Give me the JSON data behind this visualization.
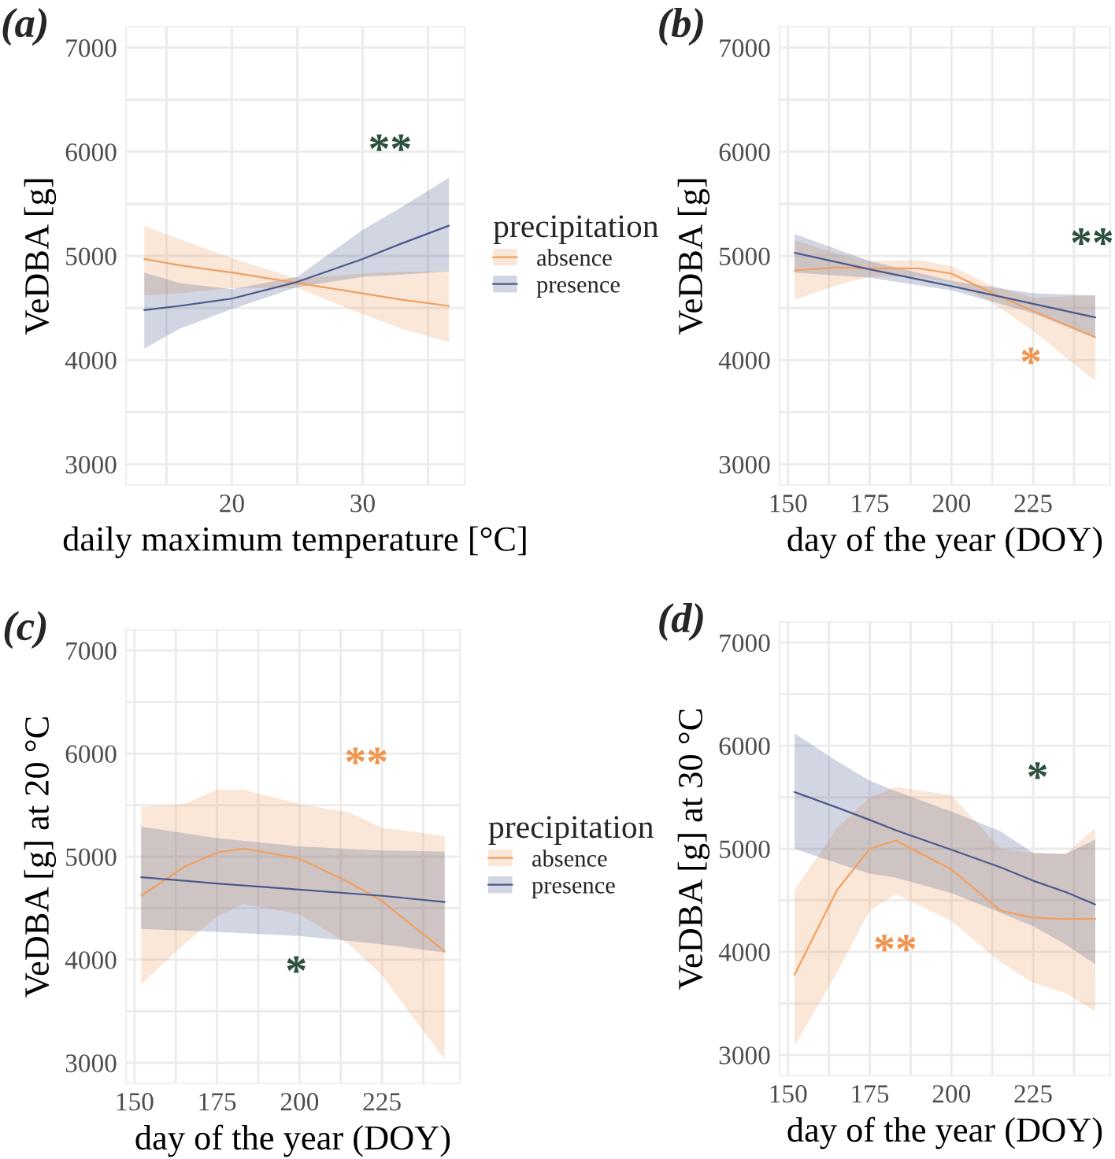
{
  "chart_data": [
    {
      "type": "line",
      "title": "(a)",
      "xlabel": "daily maximum temperature [°C]",
      "ylabel": "VeDBA [g]",
      "legend_title": "precipitation",
      "legend": "right",
      "grid": true,
      "xlim": [
        11.9,
        37.8
      ],
      "xticks": [
        {
          "value": 15,
          "label": null
        },
        20,
        {
          "value": 25,
          "label": null
        },
        30,
        {
          "value": 35,
          "label": null
        }
      ],
      "ylim": [
        2800,
        7200
      ],
      "yticks": [
        3000,
        {
          "value": 3500,
          "label": null
        },
        4000,
        {
          "value": 4500,
          "label": null
        },
        5000,
        {
          "value": 5500,
          "label": null
        },
        6000,
        {
          "value": 6500,
          "label": null
        },
        7000
      ],
      "series": [
        {
          "name": "absence",
          "color": "#f0a060",
          "x": [
            13.3,
            16,
            20,
            25,
            30,
            33,
            36.6
          ],
          "values": [
            4970,
            4910,
            4840,
            4740,
            4640,
            4580,
            4520
          ],
          "upper": [
            5290,
            5160,
            4980,
            4780,
            4830,
            4850,
            4850
          ],
          "lower": [
            4620,
            4640,
            4690,
            4690,
            4440,
            4300,
            4170
          ]
        },
        {
          "name": "presence",
          "color": "#4a5a8c",
          "x": [
            13.3,
            16,
            20,
            25,
            30,
            33,
            36.6
          ],
          "values": [
            4480,
            4520,
            4590,
            4750,
            4970,
            5120,
            5290
          ],
          "upper": [
            4840,
            4740,
            4680,
            4800,
            5250,
            5470,
            5750
          ],
          "lower": [
            4110,
            4300,
            4490,
            4700,
            4800,
            4820,
            4850
          ]
        }
      ],
      "annotations": [
        "**"
      ]
    },
    {
      "type": "line",
      "title": "(b)",
      "xlabel": "day of the year (DOY)",
      "ylabel": "VeDBA [g]",
      "grid": true,
      "xlim": [
        147.4,
        248.6
      ],
      "xticks": [
        150,
        {
          "value": 162.5,
          "label": null
        },
        175,
        {
          "value": 187.5,
          "label": null
        },
        200,
        {
          "value": 212.5,
          "label": null
        },
        225,
        {
          "value": 237.5,
          "label": null
        }
      ],
      "ylim": [
        2800,
        7200
      ],
      "yticks": [
        3000,
        {
          "value": 3500,
          "label": null
        },
        4000,
        {
          "value": 4500,
          "label": null
        },
        5000,
        {
          "value": 5500,
          "label": null
        },
        6000,
        {
          "value": 6500,
          "label": null
        },
        7000
      ],
      "series": [
        {
          "color": "#f0a060",
          "x": [
            152,
            165,
            175,
            190,
            200,
            212,
            225,
            244
          ],
          "values": [
            4860,
            4890,
            4880,
            4880,
            4830,
            4650,
            4470,
            4220
          ],
          "upper": [
            5150,
            5020,
            4950,
            4960,
            4900,
            4720,
            4600,
            4620
          ],
          "lower": [
            4580,
            4720,
            4800,
            4800,
            4740,
            4560,
            4280,
            3800
          ]
        },
        {
          "color": "#4a5a8c",
          "x": [
            152,
            175,
            200,
            225,
            244
          ],
          "values": [
            5030,
            4870,
            4710,
            4540,
            4410
          ],
          "upper": [
            5210,
            4950,
            4760,
            4640,
            4620
          ],
          "lower": [
            4840,
            4790,
            4670,
            4450,
            4210
          ]
        }
      ],
      "annotations": [
        "**",
        "*"
      ]
    },
    {
      "type": "line",
      "title": "(c)",
      "xlabel": "day of the year (DOY)",
      "ylabel": "VeDBA [g] at 20 °C",
      "legend_title": "precipitation",
      "legend": "right",
      "grid": true,
      "xlim": [
        147.4,
        248.6
      ],
      "xticks": [
        150,
        {
          "value": 162.5,
          "label": null
        },
        175,
        {
          "value": 187.5,
          "label": null
        },
        200,
        {
          "value": 212.5,
          "label": null
        },
        225,
        {
          "value": 237.5,
          "label": null
        }
      ],
      "ylim": [
        2800,
        7200
      ],
      "yticks": [
        3000,
        {
          "value": 3500,
          "label": null
        },
        4000,
        {
          "value": 4500,
          "label": null
        },
        5000,
        {
          "value": 5500,
          "label": null
        },
        6000,
        {
          "value": 6500,
          "label": null
        },
        7000
      ],
      "series": [
        {
          "name": "absence",
          "color": "#f0a060",
          "x": [
            152,
            165,
            175,
            183,
            200,
            215,
            225,
            244
          ],
          "values": [
            4620,
            4900,
            5040,
            5080,
            4980,
            4750,
            4570,
            4080
          ],
          "upper": [
            5480,
            5510,
            5650,
            5650,
            5510,
            5430,
            5280,
            5200
          ],
          "lower": [
            3760,
            4150,
            4420,
            4540,
            4440,
            4150,
            3850,
            3030
          ]
        },
        {
          "name": "presence",
          "color": "#4a5a8c",
          "x": [
            152,
            175,
            200,
            225,
            244
          ],
          "values": [
            4800,
            4740,
            4680,
            4620,
            4560
          ],
          "upper": [
            5290,
            5180,
            5100,
            5060,
            5050
          ],
          "lower": [
            4300,
            4270,
            4230,
            4150,
            4070
          ]
        }
      ],
      "annotations": [
        "**",
        "*"
      ]
    },
    {
      "type": "line",
      "title": "(d)",
      "xlabel": "day of the year (DOY)",
      "ylabel": "VeDBA [g] at 30 °C",
      "grid": true,
      "xlim": [
        147.4,
        248.6
      ],
      "xticks": [
        150,
        {
          "value": 162.5,
          "label": null
        },
        175,
        {
          "value": 187.5,
          "label": null
        },
        200,
        {
          "value": 212.5,
          "label": null
        },
        225,
        {
          "value": 237.5,
          "label": null
        }
      ],
      "ylim": [
        2800,
        7200
      ],
      "yticks": [
        3000,
        {
          "value": 3500,
          "label": null
        },
        4000,
        {
          "value": 4500,
          "label": null
        },
        5000,
        {
          "value": 5500,
          "label": null
        },
        6000,
        {
          "value": 6500,
          "label": null
        },
        7000
      ],
      "series": [
        {
          "color": "#f0a060",
          "x": [
            152,
            165,
            175,
            183,
            200,
            215,
            225,
            235,
            244
          ],
          "values": [
            3780,
            4600,
            5000,
            5080,
            4800,
            4400,
            4330,
            4320,
            4320
          ],
          "upper": [
            4600,
            5200,
            5500,
            5600,
            5520,
            5000,
            4960,
            4950,
            5200
          ],
          "lower": [
            3090,
            3800,
            4400,
            4560,
            4300,
            3900,
            3700,
            3600,
            3420
          ]
        },
        {
          "color": "#4a5a8c",
          "x": [
            152,
            165,
            175,
            183,
            200,
            215,
            225,
            235,
            244
          ],
          "values": [
            5550,
            5400,
            5280,
            5180,
            4990,
            4820,
            4690,
            4580,
            4460
          ],
          "upper": [
            6120,
            5850,
            5660,
            5560,
            5360,
            5170,
            4960,
            4950,
            5090
          ],
          "lower": [
            5000,
            4860,
            4760,
            4720,
            4570,
            4380,
            4250,
            4070,
            3880
          ]
        }
      ],
      "annotations": [
        "*",
        "**"
      ]
    }
  ]
}
